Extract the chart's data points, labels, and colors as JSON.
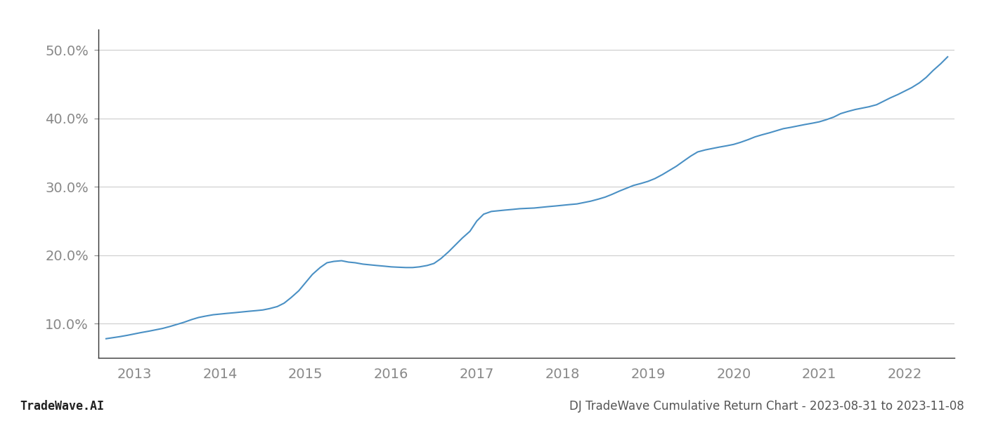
{
  "title": "",
  "footer_left": "TradeWave.AI",
  "footer_right": "DJ TradeWave Cumulative Return Chart - 2023-08-31 to 2023-11-08",
  "line_color": "#4a90c4",
  "background_color": "#ffffff",
  "grid_color": "#cccccc",
  "x_years": [
    2013,
    2014,
    2015,
    2016,
    2017,
    2018,
    2019,
    2020,
    2021,
    2022
  ],
  "x_values": [
    2012.67,
    2012.75,
    2012.83,
    2012.92,
    2013.0,
    2013.08,
    2013.17,
    2013.25,
    2013.33,
    2013.42,
    2013.5,
    2013.58,
    2013.67,
    2013.75,
    2013.83,
    2013.92,
    2014.0,
    2014.08,
    2014.17,
    2014.25,
    2014.33,
    2014.42,
    2014.5,
    2014.58,
    2014.67,
    2014.75,
    2014.83,
    2014.92,
    2015.0,
    2015.08,
    2015.17,
    2015.25,
    2015.33,
    2015.42,
    2015.5,
    2015.58,
    2015.67,
    2015.75,
    2015.83,
    2015.92,
    2016.0,
    2016.08,
    2016.17,
    2016.25,
    2016.33,
    2016.42,
    2016.5,
    2016.58,
    2016.67,
    2016.75,
    2016.83,
    2016.92,
    2017.0,
    2017.08,
    2017.17,
    2017.25,
    2017.33,
    2017.42,
    2017.5,
    2017.58,
    2017.67,
    2017.75,
    2017.83,
    2017.92,
    2018.0,
    2018.08,
    2018.17,
    2018.25,
    2018.33,
    2018.42,
    2018.5,
    2018.58,
    2018.67,
    2018.75,
    2018.83,
    2018.92,
    2019.0,
    2019.08,
    2019.17,
    2019.25,
    2019.33,
    2019.42,
    2019.5,
    2019.58,
    2019.67,
    2019.75,
    2019.83,
    2019.92,
    2020.0,
    2020.08,
    2020.17,
    2020.25,
    2020.33,
    2020.42,
    2020.5,
    2020.58,
    2020.67,
    2020.75,
    2020.83,
    2020.92,
    2021.0,
    2021.08,
    2021.17,
    2021.25,
    2021.33,
    2021.42,
    2021.5,
    2021.58,
    2021.67,
    2021.75,
    2021.83,
    2021.92,
    2022.0,
    2022.08,
    2022.17,
    2022.25,
    2022.33,
    2022.42,
    2022.5
  ],
  "y_values": [
    7.8,
    7.95,
    8.1,
    8.3,
    8.5,
    8.7,
    8.9,
    9.1,
    9.3,
    9.6,
    9.9,
    10.2,
    10.6,
    10.9,
    11.1,
    11.3,
    11.4,
    11.5,
    11.6,
    11.7,
    11.8,
    11.9,
    12.0,
    12.2,
    12.5,
    13.0,
    13.8,
    14.8,
    16.0,
    17.2,
    18.2,
    18.9,
    19.1,
    19.2,
    19.0,
    18.9,
    18.7,
    18.6,
    18.5,
    18.4,
    18.3,
    18.25,
    18.2,
    18.2,
    18.3,
    18.5,
    18.8,
    19.5,
    20.5,
    21.5,
    22.5,
    23.5,
    25.0,
    26.0,
    26.4,
    26.5,
    26.6,
    26.7,
    26.8,
    26.85,
    26.9,
    27.0,
    27.1,
    27.2,
    27.3,
    27.4,
    27.5,
    27.7,
    27.9,
    28.2,
    28.5,
    28.9,
    29.4,
    29.8,
    30.2,
    30.5,
    30.8,
    31.2,
    31.8,
    32.4,
    33.0,
    33.8,
    34.5,
    35.1,
    35.4,
    35.6,
    35.8,
    36.0,
    36.2,
    36.5,
    36.9,
    37.3,
    37.6,
    37.9,
    38.2,
    38.5,
    38.7,
    38.9,
    39.1,
    39.3,
    39.5,
    39.8,
    40.2,
    40.7,
    41.0,
    41.3,
    41.5,
    41.7,
    42.0,
    42.5,
    43.0,
    43.5,
    44.0,
    44.5,
    45.2,
    46.0,
    47.0,
    48.0,
    49.0
  ],
  "ylim": [
    5,
    53
  ],
  "yticks": [
    10.0,
    20.0,
    30.0,
    40.0,
    50.0
  ],
  "xlim": [
    2012.58,
    2022.58
  ],
  "tick_color": "#888888",
  "tick_fontsize": 14,
  "footer_fontsize": 12,
  "left_spine_color": "#333333",
  "bottom_spine_color": "#333333"
}
